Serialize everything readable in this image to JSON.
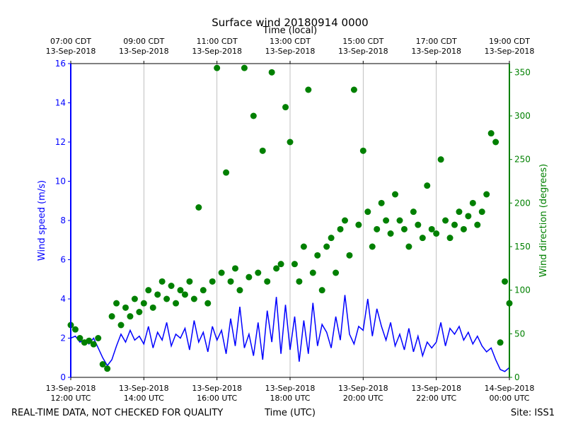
{
  "chart_data": {
    "type": "line-scatter",
    "title": "Surface wind 20180914 0000",
    "x2label": "Time (local)",
    "xlabel": "Time (UTC)",
    "ylabel": "Wind speed (m/s)",
    "y2label": "Wind direction (degrees)",
    "footer_left": "REAL-TIME DATA, NOT CHECKED FOR QUALITY",
    "footer_right": "Site: ISS1",
    "xlim": [
      12,
      24
    ],
    "xticks": [
      {
        "value": 12,
        "label": [
          "13-Sep-2018",
          "12:00 UTC"
        ]
      },
      {
        "value": 14,
        "label": [
          "13-Sep-2018",
          "14:00 UTC"
        ]
      },
      {
        "value": 16,
        "label": [
          "13-Sep-2018",
          "16:00 UTC"
        ]
      },
      {
        "value": 18,
        "label": [
          "13-Sep-2018",
          "18:00 UTC"
        ]
      },
      {
        "value": 20,
        "label": [
          "13-Sep-2018",
          "20:00 UTC"
        ]
      },
      {
        "value": 22,
        "label": [
          "13-Sep-2018",
          "22:00 UTC"
        ]
      },
      {
        "value": 24,
        "label": [
          "14-Sep-2018",
          "00:00 UTC"
        ]
      }
    ],
    "x2lim": [
      7,
      19
    ],
    "x2ticks": [
      {
        "value": 7,
        "label": [
          "07:00 CDT",
          "13-Sep-2018"
        ]
      },
      {
        "value": 9,
        "label": [
          "09:00 CDT",
          "13-Sep-2018"
        ]
      },
      {
        "value": 11,
        "label": [
          "11:00 CDT",
          "13-Sep-2018"
        ]
      },
      {
        "value": 13,
        "label": [
          "13:00 CDT",
          "13-Sep-2018"
        ]
      },
      {
        "value": 15,
        "label": [
          "15:00 CDT",
          "13-Sep-2018"
        ]
      },
      {
        "value": 17,
        "label": [
          "17:00 CDT",
          "13-Sep-2018"
        ]
      },
      {
        "value": 19,
        "label": [
          "19:00 CDT",
          "13-Sep-2018"
        ]
      }
    ],
    "ylim": [
      0,
      16
    ],
    "yticks": [
      0,
      2,
      4,
      6,
      8,
      10,
      12,
      14,
      16
    ],
    "y2lim": [
      0,
      360
    ],
    "y2ticks": [
      0,
      50,
      100,
      150,
      200,
      250,
      300,
      350
    ],
    "grid": true,
    "x": [
      12,
      12.125,
      12.25,
      12.375,
      12.5,
      12.625,
      12.75,
      12.875,
      13,
      13.125,
      13.25,
      13.375,
      13.5,
      13.625,
      13.75,
      13.875,
      14,
      14.125,
      14.25,
      14.375,
      14.5,
      14.625,
      14.75,
      14.875,
      15,
      15.125,
      15.25,
      15.375,
      15.5,
      15.625,
      15.75,
      15.875,
      16,
      16.125,
      16.25,
      16.375,
      16.5,
      16.625,
      16.75,
      16.875,
      17,
      17.125,
      17.25,
      17.375,
      17.5,
      17.625,
      17.75,
      17.875,
      18,
      18.125,
      18.25,
      18.375,
      18.5,
      18.625,
      18.75,
      18.875,
      19,
      19.125,
      19.25,
      19.375,
      19.5,
      19.625,
      19.75,
      19.875,
      20,
      20.125,
      20.25,
      20.375,
      20.5,
      20.625,
      20.75,
      20.875,
      21,
      21.125,
      21.25,
      21.375,
      21.5,
      21.625,
      21.75,
      21.875,
      22,
      22.125,
      22.25,
      22.375,
      22.5,
      22.625,
      22.75,
      22.875,
      23,
      23.125,
      23.25,
      23.375,
      23.5,
      23.625,
      23.75,
      23.875,
      24
    ],
    "series": [
      {
        "type": "line",
        "color": "#0000ff",
        "values": [
          2.0,
          2.1,
          1.8,
          1.9,
          1.7,
          2.0,
          1.5,
          1.0,
          0.6,
          0.9,
          1.6,
          2.2,
          1.8,
          2.4,
          1.9,
          2.1,
          1.7,
          2.6,
          1.5,
          2.3,
          1.9,
          2.8,
          1.6,
          2.2,
          2.0,
          2.5,
          1.4,
          2.9,
          1.8,
          2.3,
          1.3,
          2.6,
          1.9,
          2.4,
          1.2,
          3.0,
          1.6,
          3.6,
          1.5,
          2.2,
          1.1,
          2.8,
          0.9,
          3.4,
          1.8,
          4.1,
          1.2,
          3.7,
          1.4,
          3.1,
          0.8,
          2.9,
          1.2,
          3.8,
          1.6,
          2.7,
          2.3,
          1.5,
          3.1,
          1.9,
          4.2,
          2.2,
          1.7,
          2.6,
          2.4,
          4.0,
          2.1,
          3.5,
          2.6,
          1.9,
          2.8,
          1.6,
          2.2,
          1.4,
          2.5,
          1.3,
          2.1,
          1.1,
          1.8,
          1.5,
          1.8,
          2.8,
          1.6,
          2.5,
          2.2,
          2.6,
          1.9,
          2.3,
          1.7,
          2.1,
          1.6,
          1.3,
          1.5,
          0.9,
          0.4,
          0.3,
          0.5
        ]
      },
      {
        "type": "scatter",
        "axis": "y2",
        "color": "#008000",
        "values": [
          60,
          55,
          45,
          40,
          42,
          38,
          45,
          15,
          10,
          70,
          85,
          60,
          80,
          70,
          90,
          75,
          85,
          100,
          80,
          95,
          110,
          90,
          105,
          85,
          100,
          95,
          110,
          90,
          195,
          100,
          85,
          110,
          355,
          120,
          235,
          110,
          125,
          100,
          355,
          115,
          300,
          120,
          260,
          110,
          350,
          125,
          130,
          310,
          270,
          130,
          110,
          150,
          330,
          120,
          140,
          100,
          150,
          160,
          120,
          170,
          180,
          140,
          330,
          175,
          260,
          190,
          150,
          170,
          200,
          180,
          165,
          210,
          180,
          170,
          150,
          190,
          175,
          160,
          220,
          170,
          165,
          250,
          180,
          160,
          175,
          190,
          170,
          185,
          200,
          175,
          190,
          210,
          280,
          270,
          40,
          110,
          85
        ]
      }
    ]
  }
}
